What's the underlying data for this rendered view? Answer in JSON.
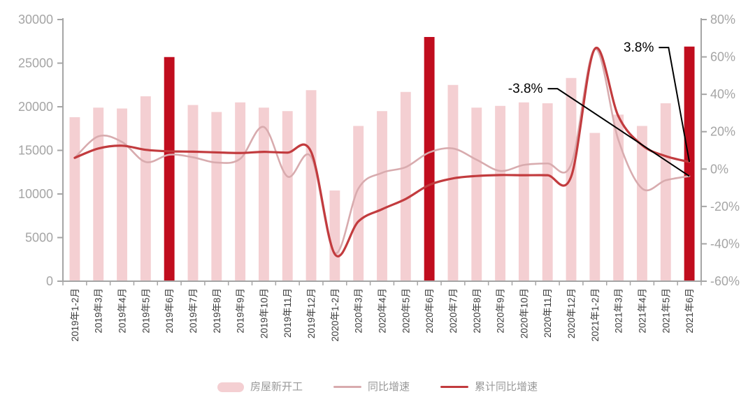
{
  "chart_data": {
    "type": "bar+line",
    "title": "",
    "categories": [
      "2019年1-2月",
      "2019年3月",
      "2019年4月",
      "2019年5月",
      "2019年6月",
      "2019年7月",
      "2019年8月",
      "2019年9月",
      "2019年10月",
      "2019年11月",
      "2019年12月",
      "2020年1-2月",
      "2020年3月",
      "2020年4月",
      "2020年5月",
      "2020年6月",
      "2020年7月",
      "2020年8月",
      "2020年9月",
      "2020年10月",
      "2020年11月",
      "2020年12月",
      "2021年1-2月",
      "2021年3月",
      "2021年4月",
      "2021年5月",
      "2021年6月"
    ],
    "bars": {
      "name": "房屋新开工",
      "values": [
        18800,
        19900,
        19800,
        21200,
        25700,
        20200,
        19400,
        20500,
        19900,
        19500,
        21900,
        10400,
        17800,
        19500,
        21700,
        28000,
        22500,
        19900,
        20100,
        20500,
        20400,
        23300,
        17000,
        19100,
        17800,
        20400,
        26900
      ],
      "highlight_indices": [
        4,
        15,
        26
      ],
      "color": "#f4cfd2",
      "highlight_color": "#c00d1e"
    },
    "line_series": [
      {
        "name": "同比增速",
        "axis": "right",
        "color": "#d8abae",
        "width": 2.6,
        "values": [
          6,
          17.5,
          14.5,
          3.8,
          7.7,
          6.3,
          3.5,
          5.5,
          22.5,
          -4,
          6.5,
          -44.9,
          -10.4,
          -2,
          1,
          8.9,
          11,
          5,
          -1,
          2.2,
          3,
          2.5,
          64.3,
          15.5,
          -10.4,
          -6,
          -3.8
        ]
      },
      {
        "name": "累计同比增速",
        "axis": "right",
        "color": "#c23b3e",
        "width": 3.2,
        "values": [
          6,
          11,
          12.5,
          10.3,
          9.5,
          9.3,
          8.9,
          8.6,
          9.2,
          8.8,
          9.2,
          -45.5,
          -28,
          -21.5,
          -16,
          -8.5,
          -5,
          -3.7,
          -3.2,
          -3.3,
          -3.3,
          -4,
          64.3,
          28.2,
          12.8,
          6.9,
          3.8
        ]
      }
    ],
    "left_axis": {
      "min": 0,
      "max": 30000,
      "step": 5000,
      "ticks": [
        {
          "label": "0",
          "value": 0
        },
        {
          "label": "5000",
          "value": 5000
        },
        {
          "label": "10000",
          "value": 10000
        },
        {
          "label": "15000",
          "value": 15000
        },
        {
          "label": "20000",
          "value": 20000
        },
        {
          "label": "25000",
          "value": 25000
        },
        {
          "label": "30000",
          "value": 30000
        }
      ]
    },
    "right_axis": {
      "min": -60,
      "max": 80,
      "step": 20,
      "ticks": [
        {
          "label": "-60%",
          "value": -60
        },
        {
          "label": "-40%",
          "value": -40
        },
        {
          "label": "-20%",
          "value": -20
        },
        {
          "label": "0%",
          "value": 0
        },
        {
          "label": "20%",
          "value": 20
        },
        {
          "label": "40%",
          "value": 40
        },
        {
          "label": "60%",
          "value": 60
        },
        {
          "label": "80%",
          "value": 80
        }
      ]
    },
    "annotations": [
      {
        "text": "-3.8%",
        "anchor_index": 19.8,
        "anchor_value": 43,
        "target_index": 26,
        "target_value": -3.8
      },
      {
        "text": "3.8%",
        "anchor_index": 24.5,
        "anchor_value": 65,
        "target_index": 26,
        "target_value": 3.8
      }
    ],
    "legend": [
      {
        "label": "房屋新开工",
        "type": "bar",
        "color": "#f4cfd2"
      },
      {
        "label": "同比增速",
        "type": "line",
        "color": "#d8abae"
      },
      {
        "label": "累计同比增速",
        "type": "line",
        "color": "#c23b3e"
      }
    ],
    "axis_color": "#a5a5a5",
    "y_label_color": "#a5a5a5",
    "x_label_color": "#3d3d3d",
    "annotation_color": "#000000",
    "legend_position": "bottom-center",
    "grid": "off"
  }
}
